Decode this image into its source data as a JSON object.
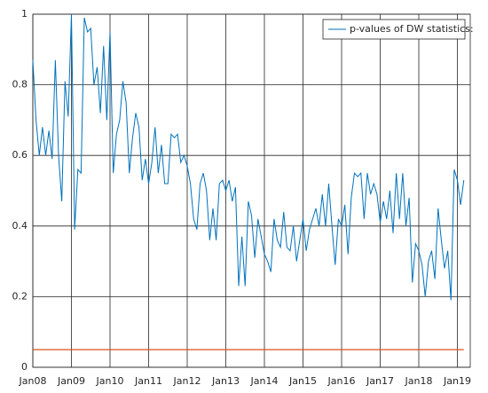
{
  "chart_data": {
    "type": "line",
    "x": [
      0,
      1,
      2,
      3,
      4,
      5,
      6,
      7,
      8,
      9,
      10,
      11,
      12,
      13,
      14,
      15,
      16,
      17,
      18,
      19,
      20,
      21,
      22,
      23,
      24,
      25,
      26,
      27,
      28,
      29,
      30,
      31,
      32,
      33,
      34,
      35,
      36,
      37,
      38,
      39,
      40,
      41,
      42,
      43,
      44,
      45,
      46,
      47,
      48,
      49,
      50,
      51,
      52,
      53,
      54,
      55,
      56,
      57,
      58,
      59,
      60,
      61,
      62,
      63,
      64,
      65,
      66,
      67,
      68,
      69,
      70,
      71,
      72,
      73,
      74,
      75,
      76,
      77,
      78,
      79,
      80,
      81,
      82,
      83,
      84,
      85,
      86,
      87,
      88,
      89,
      90,
      91,
      92,
      93,
      94,
      95,
      96,
      97,
      98,
      99,
      100,
      101,
      102,
      103,
      104,
      105,
      106,
      107,
      108,
      109,
      110,
      111,
      112,
      113,
      114,
      115,
      116,
      117,
      118,
      119,
      120,
      121,
      122,
      123,
      124,
      125,
      126,
      127,
      128,
      129,
      130,
      131,
      132,
      133,
      134
    ],
    "series": [
      {
        "name": "p-values of DW statistics:",
        "color": "#0072bd",
        "values": [
          0.87,
          0.7,
          0.6,
          0.68,
          0.6,
          0.67,
          0.59,
          0.87,
          0.6,
          0.47,
          0.81,
          0.71,
          1.0,
          0.39,
          0.56,
          0.55,
          0.99,
          0.95,
          0.96,
          0.8,
          0.85,
          0.72,
          0.91,
          0.7,
          0.95,
          0.55,
          0.66,
          0.7,
          0.81,
          0.75,
          0.55,
          0.65,
          0.72,
          0.68,
          0.53,
          0.59,
          0.52,
          0.58,
          0.68,
          0.55,
          0.63,
          0.52,
          0.52,
          0.66,
          0.65,
          0.66,
          0.58,
          0.6,
          0.57,
          0.52,
          0.42,
          0.39,
          0.52,
          0.55,
          0.5,
          0.36,
          0.45,
          0.36,
          0.52,
          0.53,
          0.5,
          0.53,
          0.47,
          0.51,
          0.23,
          0.37,
          0.23,
          0.47,
          0.43,
          0.31,
          0.42,
          0.37,
          0.32,
          0.3,
          0.27,
          0.42,
          0.36,
          0.34,
          0.44,
          0.34,
          0.33,
          0.4,
          0.3,
          0.36,
          0.42,
          0.33,
          0.39,
          0.42,
          0.45,
          0.4,
          0.49,
          0.4,
          0.52,
          0.4,
          0.29,
          0.42,
          0.4,
          0.46,
          0.32,
          0.48,
          0.55,
          0.54,
          0.55,
          0.42,
          0.55,
          0.49,
          0.52,
          0.49,
          0.41,
          0.47,
          0.42,
          0.5,
          0.38,
          0.55,
          0.42,
          0.55,
          0.4,
          0.48,
          0.24,
          0.35,
          0.33,
          0.29,
          0.2,
          0.3,
          0.33,
          0.25,
          0.45,
          0.36,
          0.28,
          0.33,
          0.19,
          0.56,
          0.53,
          0.46,
          0.53
        ]
      }
    ],
    "hline": {
      "value": 0.05,
      "color": "#d95319"
    },
    "xlim": [
      0,
      136
    ],
    "xticks": [
      {
        "value": 0,
        "label": "Jan08"
      },
      {
        "value": 12,
        "label": "Jan09"
      },
      {
        "value": 24,
        "label": "Jan10"
      },
      {
        "value": 36,
        "label": "Jan11"
      },
      {
        "value": 48,
        "label": "Jan12"
      },
      {
        "value": 60,
        "label": "Jan13"
      },
      {
        "value": 72,
        "label": "Jan14"
      },
      {
        "value": 84,
        "label": "Jan15"
      },
      {
        "value": 96,
        "label": "Jan16"
      },
      {
        "value": 108,
        "label": "Jan17"
      },
      {
        "value": 120,
        "label": "Jan18"
      },
      {
        "value": 132,
        "label": "Jan19"
      }
    ],
    "ylim": [
      0,
      1
    ],
    "yticks": [
      0,
      0.2,
      0.4,
      0.6,
      0.8,
      1
    ],
    "grid": true,
    "legend": "top-right"
  }
}
